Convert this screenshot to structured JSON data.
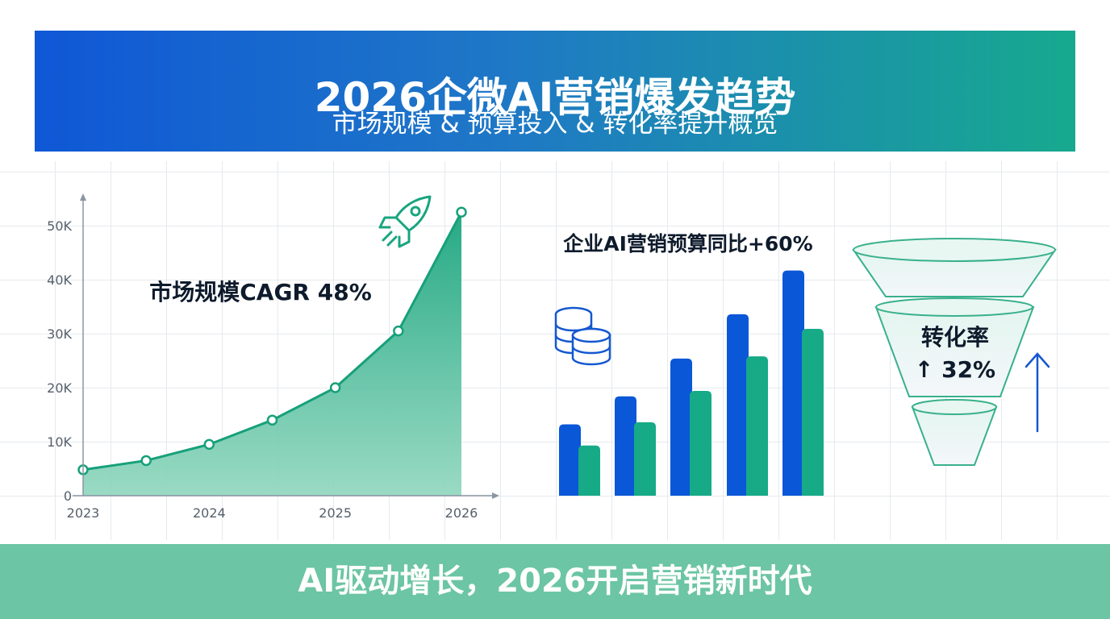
{
  "header": {
    "title": "2026企微AI营销爆发趋势",
    "subtitle": "市场规模 & 预算投入 & 转化率提升概览"
  },
  "footer": {
    "text": "AI驱动增长，2026开启营销新时代"
  },
  "colors": {
    "blue": "#0a57d8",
    "green": "#17aa87",
    "area_green": "#3dba92",
    "header_start": "#0f57d6",
    "header_end": "#17a98f",
    "footer_bg": "#6cc5a4"
  },
  "icons": [
    "rocket-icon",
    "coins-icon",
    "up-arrow-icon",
    "funnel-icon"
  ],
  "chart_data": [
    {
      "type": "area",
      "annotation": "市场规模CAGR 48%",
      "x": [
        2023,
        2023.5,
        2024,
        2024.5,
        2025,
        2025.5,
        2026
      ],
      "x_ticks": [
        "2023",
        "2024",
        "2025",
        "2026"
      ],
      "y_ticks": [
        "0",
        "10K",
        "20K",
        "30K",
        "40K",
        "50K"
      ],
      "ylim": [
        0,
        50000
      ],
      "xlim": [
        2023,
        2026
      ],
      "series": [
        {
          "values": [
            4800,
            6500,
            9500,
            14000,
            20000,
            30500,
            52500
          ]
        }
      ],
      "grid": true
    },
    {
      "type": "bar",
      "annotation": "企业AI营销预算同比+60%",
      "ylim": [
        0,
        50000
      ],
      "series": [
        {
          "values": [
            13200,
            18400,
            25400,
            33600,
            41700
          ]
        },
        {
          "values": [
            9300,
            13600,
            19400,
            25800,
            30900
          ]
        }
      ]
    },
    {
      "type": "funnel",
      "label_line1": "转化率",
      "label_line2": "↑ 32%",
      "levels": 3
    }
  ]
}
